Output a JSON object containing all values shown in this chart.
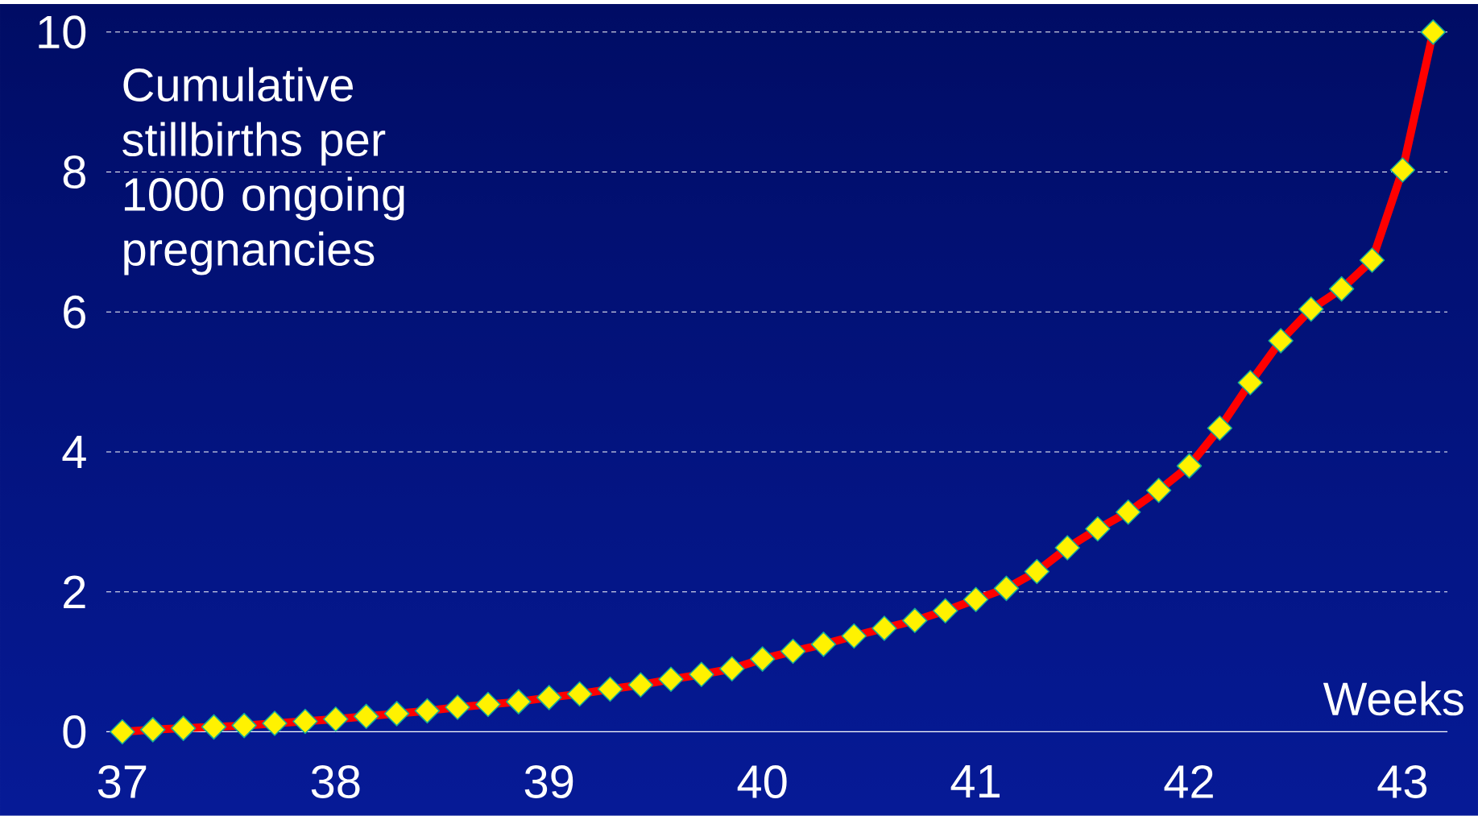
{
  "chart_data": {
    "type": "line",
    "ylabel": "Cumulative stillbirths per 1000 ongoing pregnancies",
    "xlabel": "Weeks",
    "x": [
      37,
      37.143,
      37.286,
      37.429,
      37.571,
      37.714,
      37.857,
      38,
      38.143,
      38.286,
      38.429,
      38.571,
      38.714,
      38.857,
      39,
      39.143,
      39.286,
      39.429,
      39.571,
      39.714,
      39.857,
      40,
      40.143,
      40.286,
      40.429,
      40.571,
      40.714,
      40.857,
      41,
      41.143,
      41.286,
      41.429,
      41.571,
      41.714,
      41.857,
      42,
      42.143,
      42.286,
      42.429,
      42.571,
      42.714,
      42.857,
      43,
      43.143
    ],
    "series": [
      {
        "color": "#ff0000",
        "values": [
          0,
          0.03,
          0.05,
          0.07,
          0.09,
          0.12,
          0.15,
          0.18,
          0.22,
          0.26,
          0.3,
          0.35,
          0.39,
          0.43,
          0.49,
          0.54,
          0.61,
          0.67,
          0.75,
          0.82,
          0.9,
          1.04,
          1.15,
          1.25,
          1.37,
          1.48,
          1.59,
          1.73,
          1.89,
          2.05,
          2.29,
          2.63,
          2.9,
          3.14,
          3.45,
          3.8,
          4.34,
          4.99,
          5.59,
          6.04,
          6.33,
          6.74,
          8.03,
          10.0
        ]
      }
    ],
    "xlim": [
      36.925,
      43.21
    ],
    "ylim": [
      0,
      10
    ],
    "xticks": [
      37,
      38,
      39,
      40,
      41,
      42,
      43
    ],
    "yticks": [
      0,
      2,
      4,
      6,
      8,
      10
    ],
    "grid": "y",
    "marker": "diamond",
    "line_style": "solid"
  }
}
